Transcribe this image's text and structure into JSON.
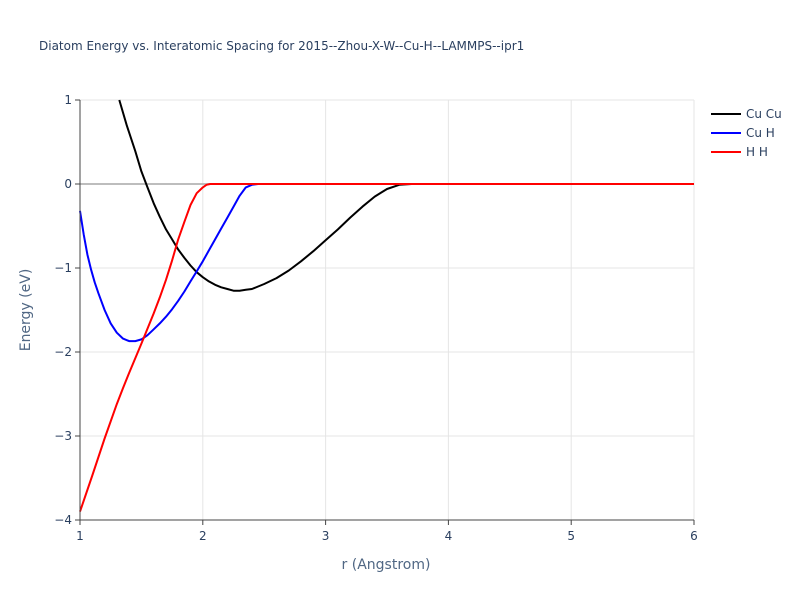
{
  "chart_data": {
    "type": "line",
    "title": "Diatom Energy vs. Interatomic Spacing for 2015--Zhou-X-W--Cu-H--LAMMPS--ipr1",
    "xlabel": "r (Angstrom)",
    "ylabel": "Energy (eV)",
    "xlim": [
      1,
      6
    ],
    "ylim": [
      -4,
      1
    ],
    "xticks": [
      1,
      2,
      3,
      4,
      5,
      6
    ],
    "yticks": [
      1,
      0,
      -1,
      -2,
      -3,
      -4
    ],
    "ytick_labels": [
      "1",
      "0",
      "−1",
      "−2",
      "−3",
      "−4"
    ],
    "grid": true,
    "legend_position": "top-right",
    "series": [
      {
        "name": "Cu Cu",
        "color": "#000000",
        "x": [
          1.32,
          1.38,
          1.45,
          1.5,
          1.55,
          1.6,
          1.65,
          1.7,
          1.75,
          1.8,
          1.85,
          1.9,
          1.95,
          2.0,
          2.05,
          2.1,
          2.15,
          2.2,
          2.25,
          2.3,
          2.35,
          2.4,
          2.45,
          2.5,
          2.6,
          2.7,
          2.8,
          2.9,
          3.0,
          3.1,
          3.2,
          3.3,
          3.4,
          3.5,
          3.6,
          3.7,
          3.8,
          4.0,
          4.5,
          5.0,
          5.5,
          6.0
        ],
        "y": [
          1.0,
          0.7,
          0.39,
          0.15,
          -0.04,
          -0.23,
          -0.39,
          -0.54,
          -0.66,
          -0.78,
          -0.88,
          -0.97,
          -1.05,
          -1.11,
          -1.16,
          -1.2,
          -1.23,
          -1.25,
          -1.27,
          -1.27,
          -1.26,
          -1.25,
          -1.22,
          -1.19,
          -1.12,
          -1.03,
          -0.92,
          -0.8,
          -0.67,
          -0.54,
          -0.4,
          -0.27,
          -0.15,
          -0.06,
          -0.01,
          0.0,
          0.0,
          0.0,
          0.0,
          0.0,
          0.0,
          0.0
        ]
      },
      {
        "name": "Cu H",
        "color": "#0000ff",
        "x": [
          1.0,
          1.03,
          1.06,
          1.09,
          1.12,
          1.15,
          1.2,
          1.25,
          1.3,
          1.35,
          1.4,
          1.45,
          1.5,
          1.55,
          1.6,
          1.65,
          1.7,
          1.75,
          1.8,
          1.85,
          1.9,
          1.95,
          2.0,
          2.05,
          2.1,
          2.15,
          2.2,
          2.25,
          2.3,
          2.35,
          2.4,
          2.45,
          2.5,
          3.0,
          4.0,
          5.0,
          6.0
        ],
        "y": [
          -0.32,
          -0.6,
          -0.84,
          -1.02,
          -1.17,
          -1.3,
          -1.5,
          -1.66,
          -1.77,
          -1.84,
          -1.87,
          -1.87,
          -1.85,
          -1.8,
          -1.73,
          -1.66,
          -1.58,
          -1.49,
          -1.39,
          -1.28,
          -1.16,
          -1.04,
          -0.92,
          -0.79,
          -0.66,
          -0.53,
          -0.4,
          -0.27,
          -0.14,
          -0.04,
          -0.01,
          0.0,
          0.0,
          0.0,
          0.0,
          0.0,
          0.0
        ]
      },
      {
        "name": "H H",
        "color": "#ff0000",
        "x": [
          1.0,
          1.1,
          1.2,
          1.3,
          1.35,
          1.4,
          1.5,
          1.6,
          1.65,
          1.7,
          1.75,
          1.8,
          1.85,
          1.9,
          1.95,
          2.0,
          2.03,
          2.06,
          2.1,
          2.15,
          2.5,
          3.0,
          4.0,
          5.0,
          6.0
        ],
        "y": [
          -3.9,
          -3.47,
          -3.03,
          -2.62,
          -2.43,
          -2.25,
          -1.9,
          -1.54,
          -1.35,
          -1.14,
          -0.91,
          -0.66,
          -0.45,
          -0.25,
          -0.11,
          -0.04,
          -0.01,
          0.0,
          0.0,
          0.0,
          0.0,
          0.0,
          0.0,
          0.0,
          0.0
        ]
      }
    ]
  }
}
